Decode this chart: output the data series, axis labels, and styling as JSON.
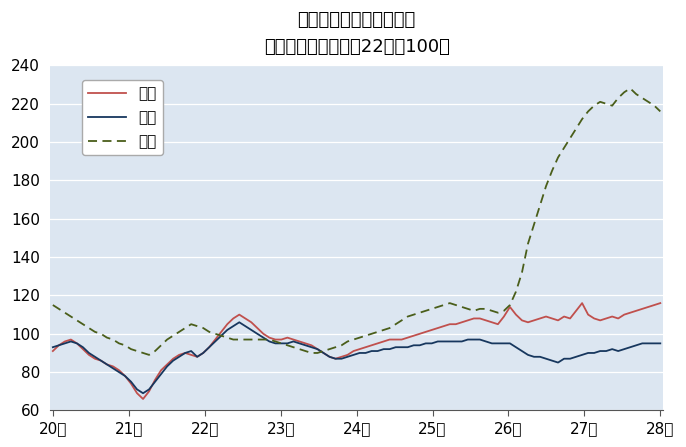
{
  "title": "鳥取県鉱工業指数の推移",
  "subtitle": "（季節調整済、平成22年＝100）",
  "xlabel_ticks": [
    "20年",
    "21年",
    "22年",
    "23年",
    "24年",
    "25年",
    "26年",
    "27年",
    "28年"
  ],
  "ylim": [
    60,
    240
  ],
  "yticks": [
    60,
    80,
    100,
    120,
    140,
    160,
    180,
    200,
    220,
    240
  ],
  "legend_labels": [
    "生産",
    "出荷",
    "在庫"
  ],
  "seisan_color": "#c0504d",
  "shukko_color": "#17375e",
  "zaiko_color": "#4a5e1a",
  "bg_color": "#dce6f1",
  "seisan": [
    91,
    94,
    96,
    97,
    95,
    92,
    89,
    87,
    86,
    84,
    83,
    81,
    78,
    74,
    69,
    66,
    70,
    76,
    81,
    84,
    87,
    89,
    90,
    89,
    88,
    90,
    93,
    97,
    101,
    105,
    108,
    110,
    108,
    106,
    103,
    100,
    98,
    97,
    97,
    98,
    97,
    96,
    95,
    94,
    92,
    90,
    88,
    87,
    88,
    89,
    91,
    92,
    93,
    94,
    95,
    96,
    97,
    97,
    97,
    98,
    99,
    100,
    101,
    102,
    103,
    104,
    105,
    105,
    106,
    107,
    108,
    108,
    107,
    106,
    105,
    109,
    114,
    110,
    107,
    106,
    107,
    108,
    109,
    108,
    107,
    109,
    108,
    112,
    116,
    110,
    108,
    107,
    108,
    109,
    108,
    110,
    111,
    112,
    113,
    114,
    115,
    116
  ],
  "shukko": [
    93,
    94,
    95,
    96,
    95,
    93,
    90,
    88,
    86,
    84,
    82,
    80,
    78,
    75,
    71,
    69,
    71,
    75,
    79,
    83,
    86,
    88,
    90,
    91,
    88,
    90,
    93,
    96,
    99,
    102,
    104,
    106,
    104,
    102,
    100,
    98,
    96,
    95,
    95,
    95,
    96,
    95,
    94,
    93,
    92,
    90,
    88,
    87,
    87,
    88,
    89,
    90,
    90,
    91,
    91,
    92,
    92,
    93,
    93,
    93,
    94,
    94,
    95,
    95,
    96,
    96,
    96,
    96,
    96,
    97,
    97,
    97,
    96,
    95,
    95,
    95,
    95,
    93,
    91,
    89,
    88,
    88,
    87,
    86,
    85,
    87,
    87,
    88,
    89,
    90,
    90,
    91,
    91,
    92,
    91,
    92,
    93,
    94,
    95,
    95,
    95,
    95
  ],
  "zaiko": [
    115,
    113,
    111,
    109,
    107,
    105,
    103,
    101,
    100,
    98,
    97,
    95,
    94,
    92,
    91,
    90,
    89,
    91,
    94,
    97,
    99,
    101,
    103,
    105,
    104,
    103,
    101,
    100,
    99,
    98,
    97,
    97,
    97,
    97,
    97,
    97,
    97,
    96,
    95,
    94,
    93,
    92,
    91,
    90,
    90,
    91,
    92,
    93,
    94,
    96,
    97,
    98,
    99,
    100,
    101,
    102,
    103,
    105,
    107,
    109,
    110,
    111,
    112,
    113,
    114,
    115,
    116,
    115,
    114,
    113,
    112,
    113,
    113,
    112,
    111,
    112,
    115,
    122,
    132,
    147,
    157,
    167,
    177,
    185,
    192,
    197,
    202,
    207,
    212,
    216,
    219,
    221,
    220,
    219,
    223,
    226,
    228,
    225,
    223,
    221,
    219,
    216
  ]
}
